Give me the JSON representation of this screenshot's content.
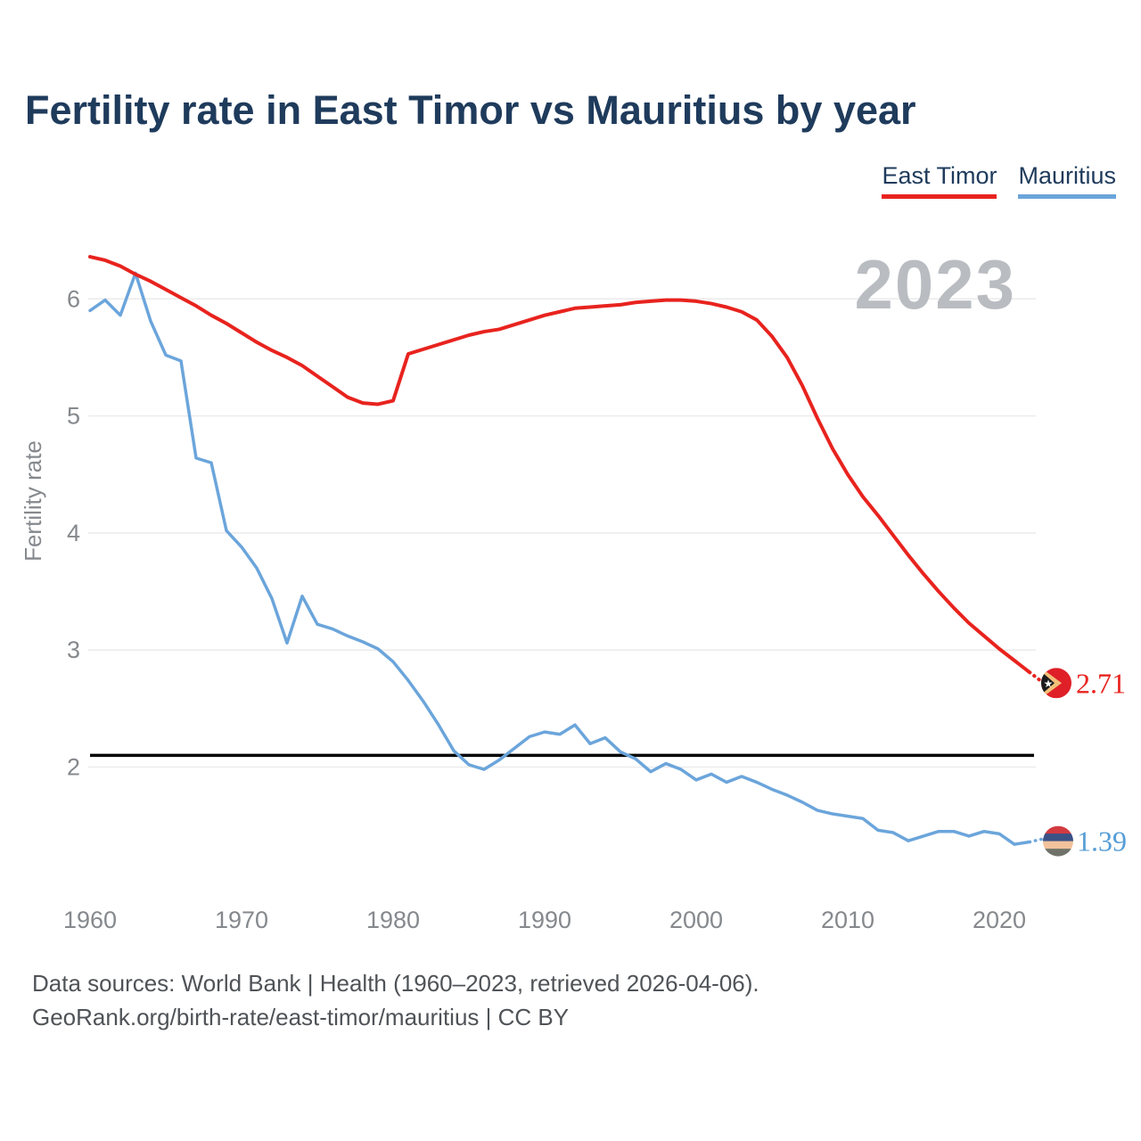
{
  "header": {
    "title": "Fertility rate in East Timor vs Mauritius by year"
  },
  "legend": {
    "items": [
      {
        "label": "East Timor",
        "color": "#e8231e"
      },
      {
        "label": "Mauritius",
        "color": "#6ba5db"
      }
    ]
  },
  "watermark": "2023",
  "footer": {
    "line1": "Data sources: World Bank | Health (1960–2023, retrieved 2026-04-06).",
    "line2": "GeoRank.org/birth-rate/east-timor/mauritius | CC BY"
  },
  "chart_data": {
    "type": "line",
    "title": "Fertility rate in East Timor vs Mauritius by year",
    "xlabel": "",
    "ylabel": "Fertility rate",
    "xlim": [
      1960,
      2023
    ],
    "ylim": [
      1.2,
      6.45
    ],
    "x_ticks": [
      1960,
      1970,
      1980,
      1990,
      2000,
      2010,
      2020
    ],
    "y_ticks": [
      2,
      3,
      4,
      5,
      6
    ],
    "grid": "horizontal",
    "gridline_color": "#ebebeb",
    "tick_color": "#85898d",
    "reference_line": {
      "value": 2.1,
      "color": "#000000"
    },
    "x": [
      1960,
      1961,
      1962,
      1963,
      1964,
      1965,
      1966,
      1967,
      1968,
      1969,
      1970,
      1971,
      1972,
      1973,
      1974,
      1975,
      1976,
      1977,
      1978,
      1979,
      1980,
      1981,
      1982,
      1983,
      1984,
      1985,
      1986,
      1987,
      1988,
      1989,
      1990,
      1991,
      1992,
      1993,
      1994,
      1995,
      1996,
      1997,
      1998,
      1999,
      2000,
      2001,
      2002,
      2003,
      2004,
      2005,
      2006,
      2007,
      2008,
      2009,
      2010,
      2011,
      2012,
      2013,
      2014,
      2015,
      2016,
      2017,
      2018,
      2019,
      2020,
      2021,
      2022,
      2023
    ],
    "series": [
      {
        "name": "East Timor",
        "color": "#e8231e",
        "end_label": "2.71",
        "end_label_color": "#e8231e",
        "flag": "east-timor",
        "flag_colors": {
          "field": "#df2028",
          "yellow": "#f2c07a",
          "black": "#1b1b1b",
          "star": "#ffffff"
        },
        "values": [
          6.36,
          6.33,
          6.28,
          6.21,
          6.15,
          6.08,
          6.01,
          5.94,
          5.86,
          5.79,
          5.71,
          5.63,
          5.56,
          5.5,
          5.43,
          5.34,
          5.25,
          5.16,
          5.11,
          5.1,
          5.13,
          5.53,
          5.57,
          5.61,
          5.65,
          5.69,
          5.72,
          5.74,
          5.78,
          5.82,
          5.86,
          5.89,
          5.92,
          5.93,
          5.94,
          5.95,
          5.97,
          5.98,
          5.99,
          5.99,
          5.98,
          5.96,
          5.93,
          5.89,
          5.82,
          5.68,
          5.5,
          5.26,
          4.98,
          4.72,
          4.5,
          4.31,
          4.15,
          3.98,
          3.81,
          3.65,
          3.5,
          3.36,
          3.23,
          3.12,
          3.01,
          2.91,
          2.81,
          2.71
        ]
      },
      {
        "name": "Mauritius",
        "color": "#6ba5db",
        "end_label": "1.39",
        "end_label_color": "#569dd6",
        "flag": "mauritius",
        "flag_colors": {
          "stripes": [
            "#d23a40",
            "#3a5186",
            "#f2c29c",
            "#70726a"
          ]
        },
        "values": [
          5.9,
          5.99,
          5.86,
          6.22,
          5.81,
          5.52,
          5.47,
          4.64,
          4.6,
          4.02,
          3.88,
          3.7,
          3.44,
          3.06,
          3.46,
          3.22,
          3.18,
          3.12,
          3.07,
          3.01,
          2.9,
          2.74,
          2.56,
          2.36,
          2.14,
          2.02,
          1.98,
          2.06,
          2.16,
          2.26,
          2.3,
          2.28,
          2.36,
          2.2,
          2.25,
          2.13,
          2.07,
          1.96,
          2.03,
          1.98,
          1.89,
          1.94,
          1.87,
          1.92,
          1.87,
          1.81,
          1.76,
          1.7,
          1.63,
          1.6,
          1.58,
          1.56,
          1.46,
          1.44,
          1.37,
          1.41,
          1.45,
          1.45,
          1.41,
          1.45,
          1.43,
          1.34,
          1.36,
          1.39
        ]
      }
    ]
  }
}
